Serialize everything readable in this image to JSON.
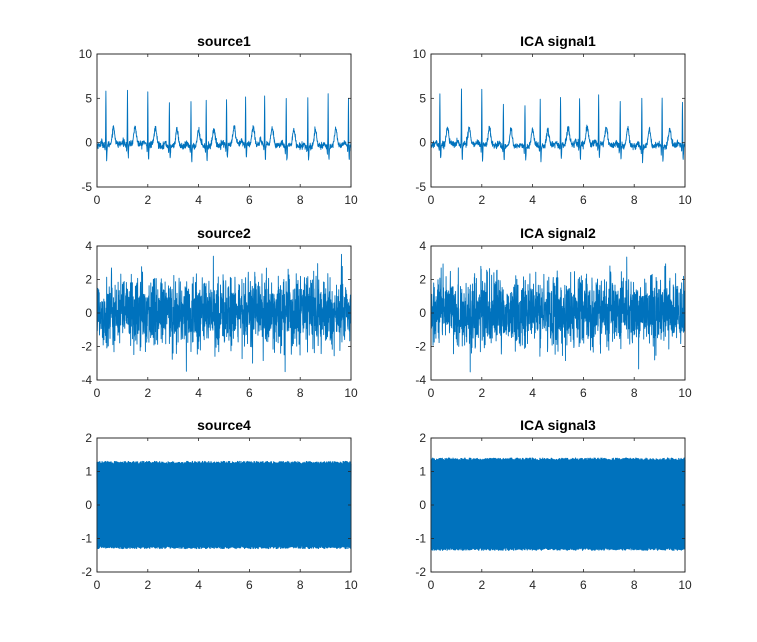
{
  "chart_data": [
    {
      "type": "line",
      "title": "source1",
      "signal": "ecg",
      "xlim": [
        0,
        10
      ],
      "ylim": [
        -5,
        10
      ],
      "xticks": [
        0,
        2,
        4,
        6,
        8,
        10
      ],
      "yticks": [
        -5,
        0,
        5,
        10
      ],
      "beats": [
        0.35,
        1.2,
        2.0,
        2.85,
        3.7,
        4.3,
        5.1,
        5.85,
        6.6,
        7.45,
        8.3,
        9.1,
        9.9
      ],
      "peaks": [
        6.0,
        6.1,
        6.0,
        5.0,
        5.0,
        5.2,
        5.4,
        5.5,
        5.6,
        5.3,
        5.6,
        5.7,
        5.0
      ],
      "color": "#0072BD"
    },
    {
      "type": "line",
      "title": "ICA signal1",
      "signal": "ecg",
      "xlim": [
        0,
        10
      ],
      "ylim": [
        -5,
        10
      ],
      "xticks": [
        0,
        2,
        4,
        6,
        8,
        10
      ],
      "yticks": [
        -5,
        0,
        5,
        10
      ],
      "beats": [
        0.35,
        1.2,
        2.0,
        2.85,
        3.7,
        4.3,
        5.1,
        5.85,
        6.6,
        7.45,
        8.3,
        9.1,
        9.9
      ],
      "peaks": [
        6.1,
        6.3,
        6.0,
        5.0,
        5.1,
        5.2,
        5.5,
        5.5,
        5.6,
        5.3,
        5.6,
        5.8,
        5.0
      ],
      "color": "#0072BD"
    },
    {
      "type": "line",
      "title": "source2",
      "signal": "noise",
      "xlim": [
        0,
        10
      ],
      "ylim": [
        -4,
        4
      ],
      "xticks": [
        0,
        2,
        4,
        6,
        8,
        10
      ],
      "yticks": [
        -4,
        -2,
        0,
        2,
        4
      ],
      "extent": [
        -3.5,
        3.5
      ],
      "color": "#0072BD"
    },
    {
      "type": "line",
      "title": "ICA signal2",
      "signal": "noise",
      "xlim": [
        0,
        10
      ],
      "ylim": [
        -4,
        4
      ],
      "xticks": [
        0,
        2,
        4,
        6,
        8,
        10
      ],
      "yticks": [
        -4,
        -2,
        0,
        2,
        4
      ],
      "extent": [
        -3.6,
        3.5
      ],
      "color": "#0072BD"
    },
    {
      "type": "line",
      "title": "source4",
      "signal": "dense",
      "xlim": [
        0,
        10
      ],
      "ylim": [
        -2,
        2
      ],
      "xticks": [
        0,
        2,
        4,
        6,
        8,
        10
      ],
      "yticks": [
        -2,
        -1,
        0,
        1,
        2
      ],
      "extent": [
        -1.3,
        1.3
      ],
      "color": "#0072BD"
    },
    {
      "type": "line",
      "title": "ICA signal3",
      "signal": "dense",
      "xlim": [
        0,
        10
      ],
      "ylim": [
        -2,
        2
      ],
      "xticks": [
        0,
        2,
        4,
        6,
        8,
        10
      ],
      "yticks": [
        -2,
        -1,
        0,
        1,
        2
      ],
      "extent": [
        -1.35,
        1.4
      ],
      "color": "#0072BD"
    }
  ]
}
